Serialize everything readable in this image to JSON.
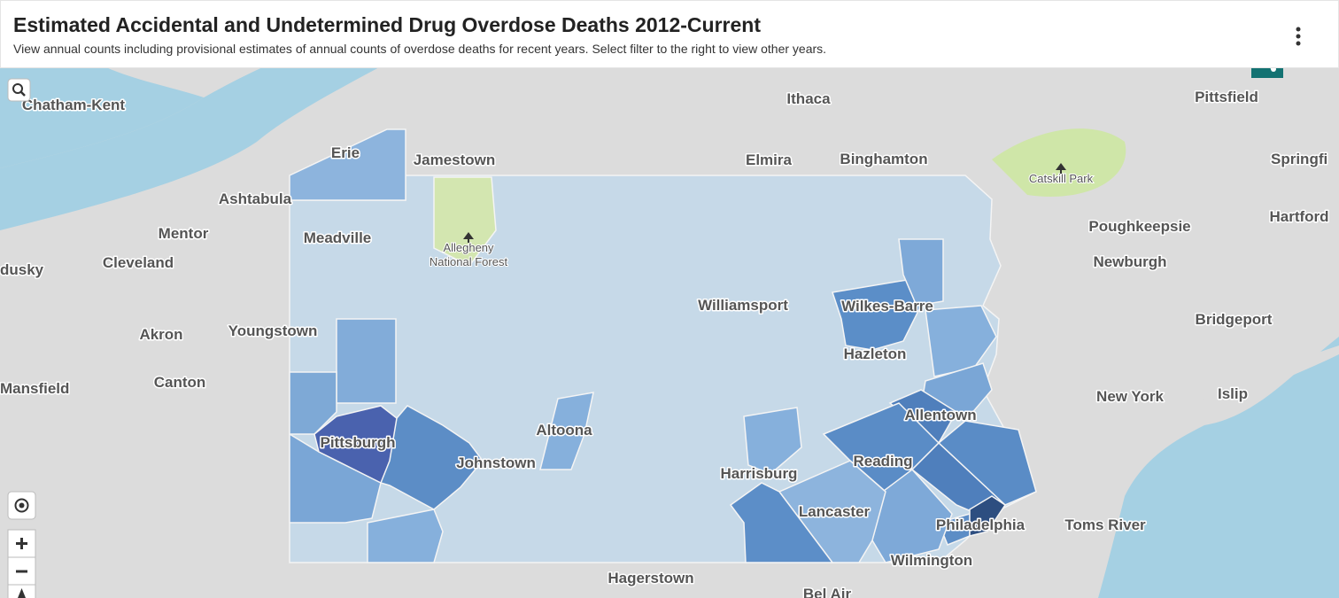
{
  "header": {
    "title": "Estimated Accidental and Undetermined Drug Overdose Deaths 2012-Current",
    "subtitle": "View annual counts including provisional estimates of annual counts of overdose deaths for recent years. Select filter to the right to view other years."
  },
  "map": {
    "places": [
      "Chatham-Kent",
      "Erie",
      "Jamestown",
      "Ithaca",
      "Elmira",
      "Binghamton",
      "Pittsfield",
      "Springfi",
      "Ashtabula",
      "Mentor",
      "Meadville",
      "Hartford",
      "Poughkeepsie",
      "Newburgh",
      "Cleveland",
      "dusky",
      "Williamsport",
      "Wilkes-Barre",
      "Bridgeport",
      "Akron",
      "Youngstown",
      "Hazleton",
      "Canton",
      "Mansfield",
      "New York",
      "Islip",
      "Allentown",
      "Altoona",
      "Pittsburgh",
      "Reading",
      "Johnstown",
      "Harrisburg",
      "Lancaster",
      "Philadelphia",
      "Toms River",
      "Wilmington",
      "Hagerstown",
      "Bel Air"
    ],
    "parks": [
      {
        "lines": [
          "Allegheny",
          "National Forest"
        ]
      },
      {
        "lines": [
          "Catskill Park"
        ]
      }
    ]
  }
}
